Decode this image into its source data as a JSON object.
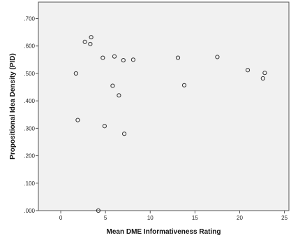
{
  "chart_data": {
    "type": "scatter",
    "xlabel": "Mean DME Informativeness Rating",
    "ylabel": "Propositional Idea Density (PID)",
    "xlim": [
      -2.5,
      25.5
    ],
    "ylim": [
      0,
      0.76
    ],
    "x_ticks": [
      0,
      5,
      10,
      15,
      20,
      25
    ],
    "x_tick_labels": [
      "0",
      "5",
      "10",
      "15",
      "20",
      "25"
    ],
    "y_ticks": [
      0,
      0.1,
      0.2,
      0.3,
      0.4,
      0.5,
      0.6,
      0.7
    ],
    "y_tick_labels": [
      ".000",
      ".100",
      ".200",
      ".300",
      ".400",
      ".500",
      ".600",
      ".700"
    ],
    "grid": false,
    "background": "#f1f1f1",
    "marker_color": "#333333",
    "points": [
      {
        "x": 1.7,
        "y": 0.5
      },
      {
        "x": 1.9,
        "y": 0.33
      },
      {
        "x": 2.7,
        "y": 0.615
      },
      {
        "x": 3.3,
        "y": 0.607
      },
      {
        "x": 3.4,
        "y": 0.632
      },
      {
        "x": 4.2,
        "y": 0.0
      },
      {
        "x": 4.7,
        "y": 0.557
      },
      {
        "x": 4.9,
        "y": 0.308
      },
      {
        "x": 5.8,
        "y": 0.455
      },
      {
        "x": 6.0,
        "y": 0.562
      },
      {
        "x": 6.5,
        "y": 0.42
      },
      {
        "x": 7.0,
        "y": 0.548
      },
      {
        "x": 7.1,
        "y": 0.28
      },
      {
        "x": 8.1,
        "y": 0.55
      },
      {
        "x": 13.1,
        "y": 0.557
      },
      {
        "x": 13.8,
        "y": 0.457
      },
      {
        "x": 17.5,
        "y": 0.56
      },
      {
        "x": 20.9,
        "y": 0.512
      },
      {
        "x": 22.6,
        "y": 0.482
      },
      {
        "x": 22.8,
        "y": 0.502
      }
    ]
  }
}
